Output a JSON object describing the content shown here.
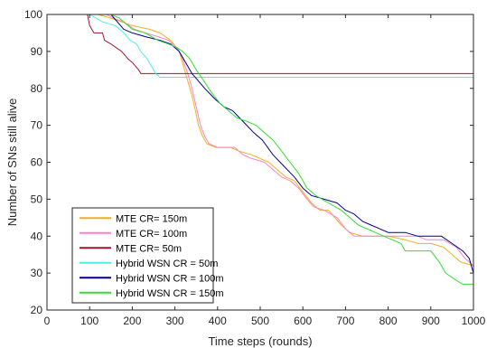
{
  "chart_data": {
    "type": "line",
    "xlabel": "Time steps (rounds)",
    "ylabel": "Number of SNs still alive",
    "xlim": [
      0,
      1000
    ],
    "ylim": [
      20,
      100
    ],
    "xticks": [
      0,
      100,
      200,
      300,
      400,
      500,
      600,
      700,
      800,
      900,
      1000
    ],
    "yticks": [
      20,
      30,
      40,
      50,
      60,
      70,
      80,
      90,
      100
    ],
    "grid": false,
    "legend_position": "bottom-left",
    "series": [
      {
        "name": "MTE CR= 150m",
        "color": "#EDB120",
        "points": [
          [
            0,
            100
          ],
          [
            120,
            100
          ],
          [
            150,
            99
          ],
          [
            175,
            98
          ],
          [
            200,
            97
          ],
          [
            240,
            96
          ],
          [
            265,
            95
          ],
          [
            290,
            93
          ],
          [
            310,
            90
          ],
          [
            320,
            86
          ],
          [
            330,
            82
          ],
          [
            340,
            78
          ],
          [
            348,
            74
          ],
          [
            355,
            70
          ],
          [
            365,
            67
          ],
          [
            375,
            65
          ],
          [
            395,
            64
          ],
          [
            430,
            64
          ],
          [
            450,
            63
          ],
          [
            480,
            62
          ],
          [
            500,
            61
          ],
          [
            520,
            60
          ],
          [
            540,
            58
          ],
          [
            560,
            56
          ],
          [
            580,
            55
          ],
          [
            600,
            52
          ],
          [
            620,
            49
          ],
          [
            640,
            47
          ],
          [
            660,
            47
          ],
          [
            675,
            45
          ],
          [
            690,
            43
          ],
          [
            710,
            41
          ],
          [
            740,
            40
          ],
          [
            800,
            40
          ],
          [
            840,
            39
          ],
          [
            870,
            38
          ],
          [
            900,
            38
          ],
          [
            930,
            37
          ],
          [
            950,
            35
          ],
          [
            970,
            33
          ],
          [
            1000,
            32
          ]
        ]
      },
      {
        "name": "MTE CR= 100m",
        "color": "#FF80C0",
        "points": [
          [
            0,
            100
          ],
          [
            140,
            100
          ],
          [
            155,
            99
          ],
          [
            180,
            98
          ],
          [
            205,
            96
          ],
          [
            230,
            95
          ],
          [
            260,
            94
          ],
          [
            285,
            93
          ],
          [
            305,
            91
          ],
          [
            318,
            88
          ],
          [
            330,
            84
          ],
          [
            340,
            80
          ],
          [
            350,
            75
          ],
          [
            360,
            70
          ],
          [
            370,
            67
          ],
          [
            380,
            65
          ],
          [
            400,
            64
          ],
          [
            440,
            64
          ],
          [
            460,
            62
          ],
          [
            480,
            61
          ],
          [
            510,
            60
          ],
          [
            530,
            58
          ],
          [
            550,
            56
          ],
          [
            570,
            55
          ],
          [
            590,
            53
          ],
          [
            610,
            50
          ],
          [
            625,
            48
          ],
          [
            650,
            47
          ],
          [
            680,
            45
          ],
          [
            700,
            42
          ],
          [
            720,
            40
          ],
          [
            800,
            40
          ],
          [
            850,
            40
          ],
          [
            870,
            40
          ],
          [
            890,
            39
          ],
          [
            930,
            39
          ],
          [
            960,
            37
          ],
          [
            980,
            34
          ],
          [
            1000,
            32
          ]
        ]
      },
      {
        "name": "MTE CR= 50m",
        "color": "#A2142F",
        "points": [
          [
            0,
            100
          ],
          [
            95,
            100
          ],
          [
            100,
            97
          ],
          [
            110,
            95
          ],
          [
            130,
            95
          ],
          [
            135,
            93
          ],
          [
            150,
            92
          ],
          [
            175,
            90
          ],
          [
            190,
            88
          ],
          [
            200,
            87
          ],
          [
            215,
            85
          ],
          [
            220,
            84
          ],
          [
            1000,
            84
          ]
        ]
      },
      {
        "name": "Hybrid WSN CR = 50m",
        "color": "#4DEEEA",
        "points": [
          [
            0,
            100
          ],
          [
            100,
            100
          ],
          [
            115,
            99
          ],
          [
            130,
            98
          ],
          [
            160,
            97
          ],
          [
            180,
            95
          ],
          [
            195,
            93
          ],
          [
            210,
            92
          ],
          [
            220,
            90
          ],
          [
            235,
            88
          ],
          [
            245,
            86
          ],
          [
            255,
            84
          ],
          [
            265,
            83
          ],
          [
            1000,
            83
          ]
        ]
      },
      {
        "name": "Hybrid WSN CR = 100m",
        "color": "#00008B",
        "points": [
          [
            0,
            100
          ],
          [
            150,
            100
          ],
          [
            165,
            98
          ],
          [
            180,
            96
          ],
          [
            200,
            95
          ],
          [
            230,
            94
          ],
          [
            265,
            93
          ],
          [
            290,
            92
          ],
          [
            310,
            90
          ],
          [
            325,
            87
          ],
          [
            340,
            84
          ],
          [
            355,
            82
          ],
          [
            370,
            80
          ],
          [
            395,
            77
          ],
          [
            415,
            75
          ],
          [
            435,
            74
          ],
          [
            460,
            71
          ],
          [
            485,
            68
          ],
          [
            505,
            66
          ],
          [
            530,
            62
          ],
          [
            555,
            59
          ],
          [
            580,
            56
          ],
          [
            600,
            53
          ],
          [
            620,
            51
          ],
          [
            650,
            50
          ],
          [
            680,
            49
          ],
          [
            700,
            47
          ],
          [
            720,
            46
          ],
          [
            740,
            44
          ],
          [
            760,
            43
          ],
          [
            780,
            42
          ],
          [
            800,
            41
          ],
          [
            840,
            41
          ],
          [
            870,
            40
          ],
          [
            900,
            40
          ],
          [
            925,
            40
          ],
          [
            950,
            38
          ],
          [
            975,
            36
          ],
          [
            990,
            34
          ],
          [
            1000,
            30
          ]
        ]
      },
      {
        "name": "Hybrid WSN CR = 150m",
        "color": "#33DD33",
        "points": [
          [
            0,
            100
          ],
          [
            150,
            100
          ],
          [
            170,
            99
          ],
          [
            200,
            96
          ],
          [
            230,
            95
          ],
          [
            260,
            93
          ],
          [
            285,
            92
          ],
          [
            305,
            91
          ],
          [
            318,
            90
          ],
          [
            335,
            88
          ],
          [
            350,
            85
          ],
          [
            368,
            82
          ],
          [
            385,
            79
          ],
          [
            405,
            76
          ],
          [
            425,
            74
          ],
          [
            445,
            72
          ],
          [
            470,
            71
          ],
          [
            490,
            70
          ],
          [
            510,
            68
          ],
          [
            530,
            66
          ],
          [
            550,
            63
          ],
          [
            570,
            60
          ],
          [
            590,
            57
          ],
          [
            610,
            53
          ],
          [
            630,
            51
          ],
          [
            660,
            49
          ],
          [
            690,
            47
          ],
          [
            710,
            45
          ],
          [
            730,
            43
          ],
          [
            750,
            42
          ],
          [
            770,
            41
          ],
          [
            790,
            40
          ],
          [
            810,
            39
          ],
          [
            830,
            38
          ],
          [
            840,
            36
          ],
          [
            900,
            36
          ],
          [
            920,
            33
          ],
          [
            935,
            30
          ],
          [
            960,
            28
          ],
          [
            975,
            27
          ],
          [
            1000,
            27
          ]
        ]
      }
    ]
  }
}
